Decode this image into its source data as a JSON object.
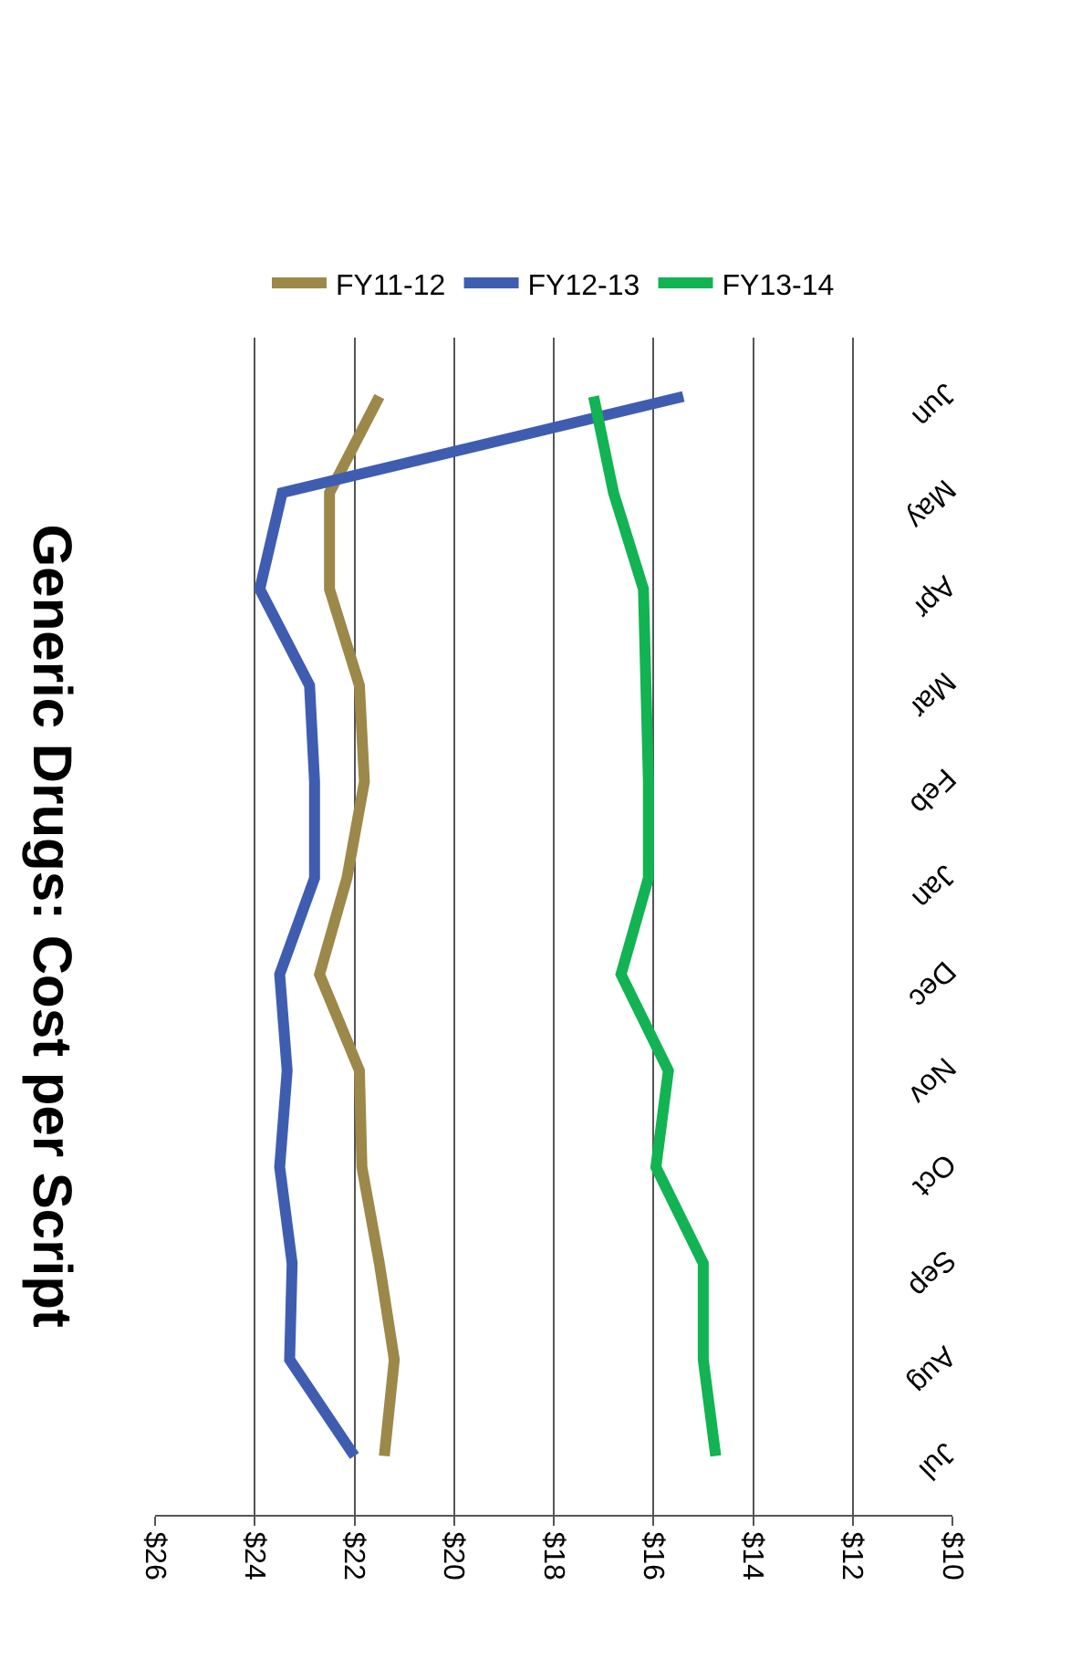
{
  "chart_data": {
    "type": "line",
    "orientation": "horizontal",
    "title": "Generic Drugs: Cost per Script",
    "categories": [
      "Jun",
      "May",
      "Apr",
      "Mar",
      "Feb",
      "Jan",
      "Dec",
      "Nov",
      "Oct",
      "Sep",
      "Aug",
      "Jul"
    ],
    "series": [
      {
        "name": "FY11-12",
        "color": "#9c8849",
        "values": [
          21.5,
          22.5,
          22.5,
          21.9,
          21.8,
          22.15,
          22.7,
          21.9,
          21.85,
          21.5,
          21.2,
          21.4
        ]
      },
      {
        "name": "FY12-13",
        "color": "#3f5db0",
        "values": [
          15.4,
          23.45,
          23.9,
          22.9,
          22.8,
          22.8,
          23.5,
          23.35,
          23.5,
          23.25,
          23.3,
          22.0
        ]
      },
      {
        "name": "FY13-14",
        "color": "#12b352",
        "values": [
          17.2,
          16.8,
          16.2,
          16.15,
          16.1,
          16.1,
          16.65,
          15.7,
          15.95,
          15,
          15,
          14.75
        ]
      }
    ],
    "xlim": [
      26,
      10
    ],
    "xticks": [
      {
        "value": 26,
        "label": "$26"
      },
      {
        "value": 24,
        "label": "$24"
      },
      {
        "value": 22,
        "label": "$22"
      },
      {
        "value": 20,
        "label": "$20"
      },
      {
        "value": 18,
        "label": "$18"
      },
      {
        "value": 16,
        "label": "$16"
      },
      {
        "value": 14,
        "label": "$14"
      },
      {
        "value": 12,
        "label": "$12"
      },
      {
        "value": 10,
        "label": "$10"
      }
    ],
    "grid": "x",
    "legend": "top",
    "marker": "none",
    "line_style": "solid"
  }
}
